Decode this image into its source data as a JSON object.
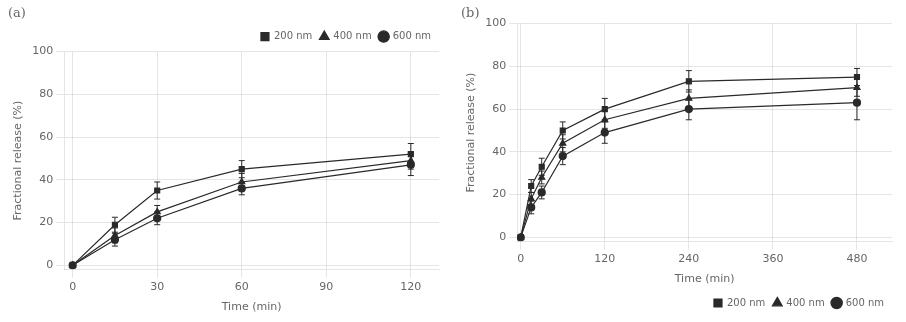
{
  "chart_data": [
    {
      "type": "line",
      "title": "(a)",
      "x_label": "Time (min)",
      "y_label": "Fractional release (%)",
      "x": [
        0,
        15,
        30,
        60,
        120
      ],
      "series": [
        {
          "name": "200 nm",
          "marker": "square",
          "color": "#2a2a2a",
          "values": [
            0,
            19,
            35,
            45,
            52
          ],
          "yerr": [
            0,
            3.5,
            4,
            4,
            5
          ]
        },
        {
          "name": "400 nm",
          "marker": "triangle",
          "color": "#2a2a2a",
          "values": [
            0,
            14,
            25,
            39,
            49
          ],
          "yerr": [
            0,
            3.5,
            3,
            4,
            4
          ]
        },
        {
          "name": "600 nm",
          "marker": "circle",
          "color": "#2a2a2a",
          "values": [
            0,
            12,
            22,
            36,
            47
          ],
          "yerr": [
            0,
            3,
            3,
            3,
            5
          ]
        }
      ],
      "xlim": [
        -3,
        130
      ],
      "xticks": [
        0,
        30,
        60,
        90,
        120
      ],
      "ylim": [
        -2,
        100
      ],
      "yticks": [
        0,
        20,
        40,
        60,
        80,
        100
      ],
      "grid": true,
      "legend": "upper right"
    },
    {
      "type": "line",
      "title": "(b)",
      "x_label": "Time (min)",
      "y_label": "Fractional release (%)",
      "x": [
        0,
        15,
        30,
        60,
        120,
        240,
        480
      ],
      "series": [
        {
          "name": "200 nm",
          "marker": "square",
          "color": "#2a2a2a",
          "values": [
            0,
            24,
            33,
            50,
            60,
            73,
            75
          ],
          "yerr": [
            0,
            3,
            4,
            4,
            5,
            5,
            4
          ]
        },
        {
          "name": "400 nm",
          "marker": "triangle",
          "color": "#2a2a2a",
          "values": [
            0,
            18,
            28,
            44,
            55,
            65,
            70
          ],
          "yerr": [
            0,
            3,
            3,
            4,
            4,
            4,
            4
          ]
        },
        {
          "name": "600 nm",
          "marker": "circle",
          "color": "#2a2a2a",
          "values": [
            0,
            14,
            21,
            38,
            49,
            60,
            63
          ],
          "yerr": [
            0,
            3,
            3,
            4,
            5,
            5,
            8
          ]
        }
      ],
      "xlim": [
        -5,
        530
      ],
      "xticks": [
        0,
        120,
        240,
        360,
        480
      ],
      "ylim": [
        -2,
        100
      ],
      "yticks": [
        0,
        20,
        40,
        60,
        80,
        100
      ],
      "grid": true,
      "legend": "lower right"
    }
  ]
}
